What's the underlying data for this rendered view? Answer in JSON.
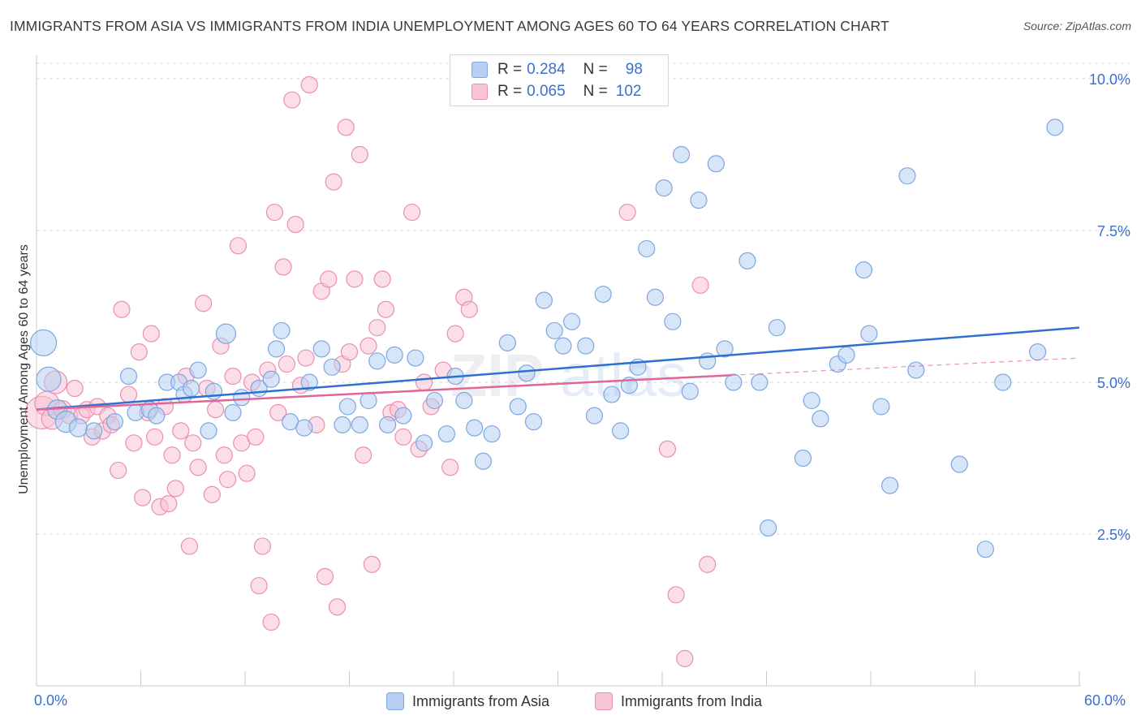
{
  "header": {
    "title": "IMMIGRANTS FROM ASIA VS IMMIGRANTS FROM INDIA UNEMPLOYMENT AMONG AGES 60 TO 64 YEARS CORRELATION CHART",
    "source": "Source: ZipAtlas.com"
  },
  "colors": {
    "asia_fill": "#b7cff2",
    "asia_stroke": "#7ea6e0",
    "asia_line": "#2f6fcf",
    "india_fill": "#f8c3d3",
    "india_stroke": "#eb8fae",
    "india_line": "#e0669a",
    "tick_label": "#3a6fd1",
    "grid": "#d9d9d9"
  },
  "legend": {
    "asia": {
      "r_label": "R =",
      "r_value": "0.284",
      "n_label": "N =",
      "n_value": "98"
    },
    "india": {
      "r_label": "R =",
      "r_value": "0.065",
      "n_label": "N =",
      "n_value": "102"
    }
  },
  "watermark": {
    "zip": "ZIP",
    "atlas": "atlas"
  },
  "chart_data": {
    "type": "scatter",
    "title": "IMMIGRANTS FROM ASIA VS IMMIGRANTS FROM INDIA UNEMPLOYMENT AMONG AGES 60 TO 64 YEARS CORRELATION CHART",
    "xlabel": "",
    "ylabel": "Unemployment Among Ages 60 to 64 years",
    "xlim": [
      0,
      60
    ],
    "ylim": [
      0,
      10.2
    ],
    "x_tick_labels": [
      "0.0%",
      "60.0%"
    ],
    "y_ticks": [
      2.5,
      5.0,
      7.5,
      10.0
    ],
    "y_tick_labels": [
      "2.5%",
      "5.0%",
      "7.5%",
      "10.0%"
    ],
    "grid": true,
    "series": [
      {
        "name": "Immigrants from Asia",
        "r": 0.284,
        "n": 98,
        "trend": {
          "x": [
            0,
            60
          ],
          "y": [
            4.55,
            5.9
          ],
          "dashed_from": null
        },
        "points": [
          [
            0.4,
            5.65,
            1.6
          ],
          [
            0.7,
            5.05,
            1.5
          ],
          [
            1.2,
            4.55,
            1.2
          ],
          [
            1.7,
            4.35,
            1.3
          ],
          [
            2.4,
            4.25,
            1.1
          ],
          [
            3.3,
            4.2,
            1.0
          ],
          [
            4.5,
            4.35,
            1.0
          ],
          [
            5.3,
            5.1,
            1.0
          ],
          [
            5.7,
            4.5,
            1.0
          ],
          [
            6.5,
            4.55,
            1.0
          ],
          [
            6.9,
            4.45,
            1.0
          ],
          [
            7.5,
            5.0,
            1.0
          ],
          [
            8.2,
            5.0,
            1.0
          ],
          [
            8.5,
            4.8,
            1.0
          ],
          [
            8.9,
            4.9,
            1.0
          ],
          [
            9.3,
            5.2,
            1.0
          ],
          [
            9.9,
            4.2,
            1.0
          ],
          [
            10.2,
            4.85,
            1.0
          ],
          [
            10.9,
            5.8,
            1.2
          ],
          [
            11.3,
            4.5,
            1.0
          ],
          [
            11.8,
            4.75,
            1.0
          ],
          [
            12.8,
            4.9,
            1.0
          ],
          [
            13.5,
            5.05,
            1.0
          ],
          [
            13.8,
            5.55,
            1.0
          ],
          [
            14.1,
            5.85,
            1.0
          ],
          [
            14.6,
            4.35,
            1.0
          ],
          [
            15.4,
            4.25,
            1.0
          ],
          [
            15.7,
            5.0,
            1.0
          ],
          [
            16.4,
            5.55,
            1.0
          ],
          [
            17.0,
            5.25,
            1.0
          ],
          [
            17.6,
            4.3,
            1.0
          ],
          [
            17.9,
            4.6,
            1.0
          ],
          [
            18.6,
            4.3,
            1.0
          ],
          [
            19.1,
            4.7,
            1.0
          ],
          [
            19.6,
            5.35,
            1.0
          ],
          [
            20.2,
            4.3,
            1.0
          ],
          [
            20.6,
            5.45,
            1.0
          ],
          [
            21.1,
            4.45,
            1.0
          ],
          [
            21.8,
            5.4,
            1.0
          ],
          [
            22.3,
            4.0,
            1.0
          ],
          [
            22.9,
            4.7,
            1.0
          ],
          [
            23.6,
            4.15,
            1.0
          ],
          [
            24.1,
            5.1,
            1.0
          ],
          [
            24.6,
            4.7,
            1.0
          ],
          [
            25.2,
            4.25,
            1.0
          ],
          [
            25.7,
            3.7,
            1.0
          ],
          [
            26.2,
            4.15,
            1.0
          ],
          [
            27.1,
            5.65,
            1.0
          ],
          [
            27.7,
            4.6,
            1.0
          ],
          [
            28.2,
            5.15,
            1.0
          ],
          [
            28.6,
            4.35,
            1.0
          ],
          [
            29.2,
            6.35,
            1.0
          ],
          [
            29.8,
            5.85,
            1.0
          ],
          [
            30.3,
            5.6,
            1.0
          ],
          [
            30.8,
            6.0,
            1.0
          ],
          [
            31.6,
            5.6,
            1.0
          ],
          [
            32.1,
            4.45,
            1.0
          ],
          [
            32.6,
            6.45,
            1.0
          ],
          [
            33.1,
            4.8,
            1.0
          ],
          [
            33.6,
            4.2,
            1.0
          ],
          [
            34.1,
            4.95,
            1.0
          ],
          [
            34.6,
            5.25,
            1.0
          ],
          [
            35.1,
            7.2,
            1.0
          ],
          [
            35.6,
            6.4,
            1.0
          ],
          [
            36.1,
            8.2,
            1.0
          ],
          [
            36.6,
            6.0,
            1.0
          ],
          [
            37.1,
            8.75,
            1.0
          ],
          [
            37.6,
            4.85,
            1.0
          ],
          [
            38.1,
            8.0,
            1.0
          ],
          [
            38.6,
            5.35,
            1.0
          ],
          [
            39.1,
            8.6,
            1.0
          ],
          [
            39.6,
            5.55,
            1.0
          ],
          [
            40.1,
            5.0,
            1.0
          ],
          [
            40.9,
            7.0,
            1.0
          ],
          [
            41.6,
            5.0,
            1.0
          ],
          [
            42.1,
            2.6,
            1.0
          ],
          [
            42.6,
            5.9,
            1.0
          ],
          [
            44.1,
            3.75,
            1.0
          ],
          [
            44.6,
            4.7,
            1.0
          ],
          [
            45.1,
            4.4,
            1.0
          ],
          [
            46.1,
            5.3,
            1.0
          ],
          [
            46.6,
            5.45,
            1.0
          ],
          [
            47.6,
            6.85,
            1.0
          ],
          [
            47.9,
            5.8,
            1.0
          ],
          [
            48.6,
            4.6,
            1.0
          ],
          [
            49.1,
            3.3,
            1.0
          ],
          [
            50.1,
            8.4,
            1.0
          ],
          [
            50.6,
            5.2,
            1.0
          ],
          [
            53.1,
            3.65,
            1.0
          ],
          [
            54.6,
            2.25,
            1.0
          ],
          [
            55.6,
            5.0,
            1.0
          ],
          [
            57.6,
            5.5,
            1.0
          ],
          [
            58.6,
            9.2,
            1.0
          ]
        ]
      },
      {
        "name": "Immigrants from India",
        "r": 0.065,
        "n": 102,
        "trend": {
          "x": [
            0,
            60
          ],
          "y": [
            4.55,
            5.4
          ],
          "dashed_from": 40
        },
        "points": [
          [
            0.3,
            4.5,
            2.0
          ],
          [
            0.6,
            4.65,
            1.5
          ],
          [
            0.9,
            4.4,
            1.3
          ],
          [
            1.1,
            5.0,
            1.4
          ],
          [
            1.5,
            4.55,
            1.1
          ],
          [
            1.9,
            4.45,
            1.0
          ],
          [
            2.2,
            4.9,
            1.0
          ],
          [
            2.6,
            4.45,
            1.0
          ],
          [
            2.9,
            4.55,
            1.0
          ],
          [
            3.2,
            4.1,
            1.0
          ],
          [
            3.5,
            4.6,
            1.0
          ],
          [
            3.8,
            4.2,
            1.0
          ],
          [
            4.1,
            4.45,
            1.0
          ],
          [
            4.3,
            4.3,
            1.0
          ],
          [
            4.7,
            3.55,
            1.0
          ],
          [
            4.9,
            6.2,
            1.0
          ],
          [
            5.3,
            4.8,
            1.0
          ],
          [
            5.6,
            4.0,
            1.0
          ],
          [
            5.9,
            5.5,
            1.0
          ],
          [
            6.1,
            3.1,
            1.0
          ],
          [
            6.4,
            4.5,
            1.0
          ],
          [
            6.6,
            5.8,
            1.0
          ],
          [
            6.8,
            4.1,
            1.0
          ],
          [
            7.1,
            2.95,
            1.0
          ],
          [
            7.4,
            4.6,
            1.0
          ],
          [
            7.6,
            3.0,
            1.0
          ],
          [
            7.8,
            3.8,
            1.0
          ],
          [
            8.0,
            3.25,
            1.0
          ],
          [
            8.3,
            4.2,
            1.0
          ],
          [
            8.6,
            5.1,
            1.0
          ],
          [
            8.8,
            2.3,
            1.0
          ],
          [
            9.0,
            4.0,
            1.0
          ],
          [
            9.3,
            3.6,
            1.0
          ],
          [
            9.6,
            6.3,
            1.0
          ],
          [
            9.8,
            4.9,
            1.0
          ],
          [
            10.1,
            3.15,
            1.0
          ],
          [
            10.3,
            4.55,
            1.0
          ],
          [
            10.6,
            5.6,
            1.0
          ],
          [
            10.8,
            3.8,
            1.0
          ],
          [
            11.0,
            3.4,
            1.0
          ],
          [
            11.3,
            5.1,
            1.0
          ],
          [
            11.6,
            7.25,
            1.0
          ],
          [
            11.8,
            4.0,
            1.0
          ],
          [
            12.1,
            3.5,
            1.0
          ],
          [
            12.4,
            5.0,
            1.0
          ],
          [
            12.6,
            4.1,
            1.0
          ],
          [
            12.8,
            1.65,
            1.0
          ],
          [
            13.0,
            2.3,
            1.0
          ],
          [
            13.3,
            5.2,
            1.0
          ],
          [
            13.5,
            1.05,
            1.0
          ],
          [
            13.7,
            7.8,
            1.0
          ],
          [
            13.9,
            4.5,
            1.0
          ],
          [
            14.2,
            6.9,
            1.0
          ],
          [
            14.4,
            5.3,
            1.0
          ],
          [
            14.7,
            9.65,
            1.0
          ],
          [
            14.9,
            7.6,
            1.0
          ],
          [
            15.2,
            4.95,
            1.0
          ],
          [
            15.5,
            5.4,
            1.0
          ],
          [
            15.7,
            9.9,
            1.0
          ],
          [
            16.1,
            4.3,
            1.0
          ],
          [
            16.4,
            6.5,
            1.0
          ],
          [
            16.6,
            1.8,
            1.0
          ],
          [
            16.8,
            6.7,
            1.0
          ],
          [
            17.1,
            8.3,
            1.0
          ],
          [
            17.3,
            1.3,
            1.0
          ],
          [
            17.6,
            5.3,
            1.0
          ],
          [
            17.8,
            9.2,
            1.0
          ],
          [
            18.0,
            5.5,
            1.0
          ],
          [
            18.3,
            6.7,
            1.0
          ],
          [
            18.6,
            8.75,
            1.0
          ],
          [
            18.8,
            3.8,
            1.0
          ],
          [
            19.1,
            5.6,
            1.0
          ],
          [
            19.3,
            2.0,
            1.0
          ],
          [
            19.6,
            5.9,
            1.0
          ],
          [
            19.9,
            6.7,
            1.0
          ],
          [
            20.1,
            6.2,
            1.0
          ],
          [
            20.4,
            4.5,
            1.0
          ],
          [
            20.8,
            4.55,
            1.0
          ],
          [
            21.1,
            4.1,
            1.0
          ],
          [
            21.6,
            7.8,
            1.0
          ],
          [
            22.0,
            3.9,
            1.0
          ],
          [
            22.3,
            5.0,
            1.0
          ],
          [
            22.7,
            4.6,
            1.0
          ],
          [
            23.4,
            5.2,
            1.0
          ],
          [
            23.8,
            3.6,
            1.0
          ],
          [
            24.1,
            5.8,
            1.0
          ],
          [
            24.6,
            6.4,
            1.0
          ],
          [
            24.9,
            6.2,
            1.0
          ],
          [
            34.0,
            7.8,
            1.0
          ],
          [
            36.3,
            3.9,
            1.0
          ],
          [
            36.8,
            1.5,
            1.0
          ],
          [
            37.3,
            0.45,
            1.0
          ],
          [
            38.2,
            6.6,
            1.0
          ],
          [
            38.6,
            2.0,
            1.0
          ]
        ]
      }
    ]
  }
}
